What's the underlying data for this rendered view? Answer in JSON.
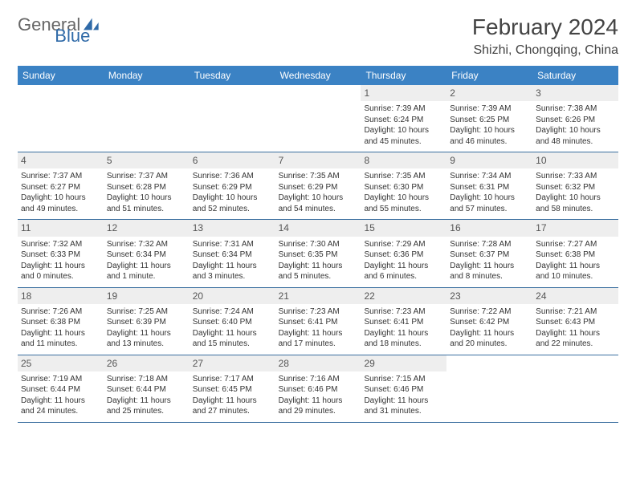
{
  "brand": {
    "general": "General",
    "blue": "Blue"
  },
  "header": {
    "title": "February 2024",
    "location": "Shizhi, Chongqing, China"
  },
  "colors": {
    "header_bg": "#3b82c4",
    "rule": "#3b6fa0",
    "daynum_bg": "#eeeeee"
  },
  "day_names": [
    "Sunday",
    "Monday",
    "Tuesday",
    "Wednesday",
    "Thursday",
    "Friday",
    "Saturday"
  ],
  "weeks": [
    [
      null,
      null,
      null,
      null,
      {
        "n": "1",
        "sr": "Sunrise: 7:39 AM",
        "ss": "Sunset: 6:24 PM",
        "dl": "Daylight: 10 hours and 45 minutes."
      },
      {
        "n": "2",
        "sr": "Sunrise: 7:39 AM",
        "ss": "Sunset: 6:25 PM",
        "dl": "Daylight: 10 hours and 46 minutes."
      },
      {
        "n": "3",
        "sr": "Sunrise: 7:38 AM",
        "ss": "Sunset: 6:26 PM",
        "dl": "Daylight: 10 hours and 48 minutes."
      }
    ],
    [
      {
        "n": "4",
        "sr": "Sunrise: 7:37 AM",
        "ss": "Sunset: 6:27 PM",
        "dl": "Daylight: 10 hours and 49 minutes."
      },
      {
        "n": "5",
        "sr": "Sunrise: 7:37 AM",
        "ss": "Sunset: 6:28 PM",
        "dl": "Daylight: 10 hours and 51 minutes."
      },
      {
        "n": "6",
        "sr": "Sunrise: 7:36 AM",
        "ss": "Sunset: 6:29 PM",
        "dl": "Daylight: 10 hours and 52 minutes."
      },
      {
        "n": "7",
        "sr": "Sunrise: 7:35 AM",
        "ss": "Sunset: 6:29 PM",
        "dl": "Daylight: 10 hours and 54 minutes."
      },
      {
        "n": "8",
        "sr": "Sunrise: 7:35 AM",
        "ss": "Sunset: 6:30 PM",
        "dl": "Daylight: 10 hours and 55 minutes."
      },
      {
        "n": "9",
        "sr": "Sunrise: 7:34 AM",
        "ss": "Sunset: 6:31 PM",
        "dl": "Daylight: 10 hours and 57 minutes."
      },
      {
        "n": "10",
        "sr": "Sunrise: 7:33 AM",
        "ss": "Sunset: 6:32 PM",
        "dl": "Daylight: 10 hours and 58 minutes."
      }
    ],
    [
      {
        "n": "11",
        "sr": "Sunrise: 7:32 AM",
        "ss": "Sunset: 6:33 PM",
        "dl": "Daylight: 11 hours and 0 minutes."
      },
      {
        "n": "12",
        "sr": "Sunrise: 7:32 AM",
        "ss": "Sunset: 6:34 PM",
        "dl": "Daylight: 11 hours and 1 minute."
      },
      {
        "n": "13",
        "sr": "Sunrise: 7:31 AM",
        "ss": "Sunset: 6:34 PM",
        "dl": "Daylight: 11 hours and 3 minutes."
      },
      {
        "n": "14",
        "sr": "Sunrise: 7:30 AM",
        "ss": "Sunset: 6:35 PM",
        "dl": "Daylight: 11 hours and 5 minutes."
      },
      {
        "n": "15",
        "sr": "Sunrise: 7:29 AM",
        "ss": "Sunset: 6:36 PM",
        "dl": "Daylight: 11 hours and 6 minutes."
      },
      {
        "n": "16",
        "sr": "Sunrise: 7:28 AM",
        "ss": "Sunset: 6:37 PM",
        "dl": "Daylight: 11 hours and 8 minutes."
      },
      {
        "n": "17",
        "sr": "Sunrise: 7:27 AM",
        "ss": "Sunset: 6:38 PM",
        "dl": "Daylight: 11 hours and 10 minutes."
      }
    ],
    [
      {
        "n": "18",
        "sr": "Sunrise: 7:26 AM",
        "ss": "Sunset: 6:38 PM",
        "dl": "Daylight: 11 hours and 11 minutes."
      },
      {
        "n": "19",
        "sr": "Sunrise: 7:25 AM",
        "ss": "Sunset: 6:39 PM",
        "dl": "Daylight: 11 hours and 13 minutes."
      },
      {
        "n": "20",
        "sr": "Sunrise: 7:24 AM",
        "ss": "Sunset: 6:40 PM",
        "dl": "Daylight: 11 hours and 15 minutes."
      },
      {
        "n": "21",
        "sr": "Sunrise: 7:23 AM",
        "ss": "Sunset: 6:41 PM",
        "dl": "Daylight: 11 hours and 17 minutes."
      },
      {
        "n": "22",
        "sr": "Sunrise: 7:23 AM",
        "ss": "Sunset: 6:41 PM",
        "dl": "Daylight: 11 hours and 18 minutes."
      },
      {
        "n": "23",
        "sr": "Sunrise: 7:22 AM",
        "ss": "Sunset: 6:42 PM",
        "dl": "Daylight: 11 hours and 20 minutes."
      },
      {
        "n": "24",
        "sr": "Sunrise: 7:21 AM",
        "ss": "Sunset: 6:43 PM",
        "dl": "Daylight: 11 hours and 22 minutes."
      }
    ],
    [
      {
        "n": "25",
        "sr": "Sunrise: 7:19 AM",
        "ss": "Sunset: 6:44 PM",
        "dl": "Daylight: 11 hours and 24 minutes."
      },
      {
        "n": "26",
        "sr": "Sunrise: 7:18 AM",
        "ss": "Sunset: 6:44 PM",
        "dl": "Daylight: 11 hours and 25 minutes."
      },
      {
        "n": "27",
        "sr": "Sunrise: 7:17 AM",
        "ss": "Sunset: 6:45 PM",
        "dl": "Daylight: 11 hours and 27 minutes."
      },
      {
        "n": "28",
        "sr": "Sunrise: 7:16 AM",
        "ss": "Sunset: 6:46 PM",
        "dl": "Daylight: 11 hours and 29 minutes."
      },
      {
        "n": "29",
        "sr": "Sunrise: 7:15 AM",
        "ss": "Sunset: 6:46 PM",
        "dl": "Daylight: 11 hours and 31 minutes."
      },
      null,
      null
    ]
  ]
}
